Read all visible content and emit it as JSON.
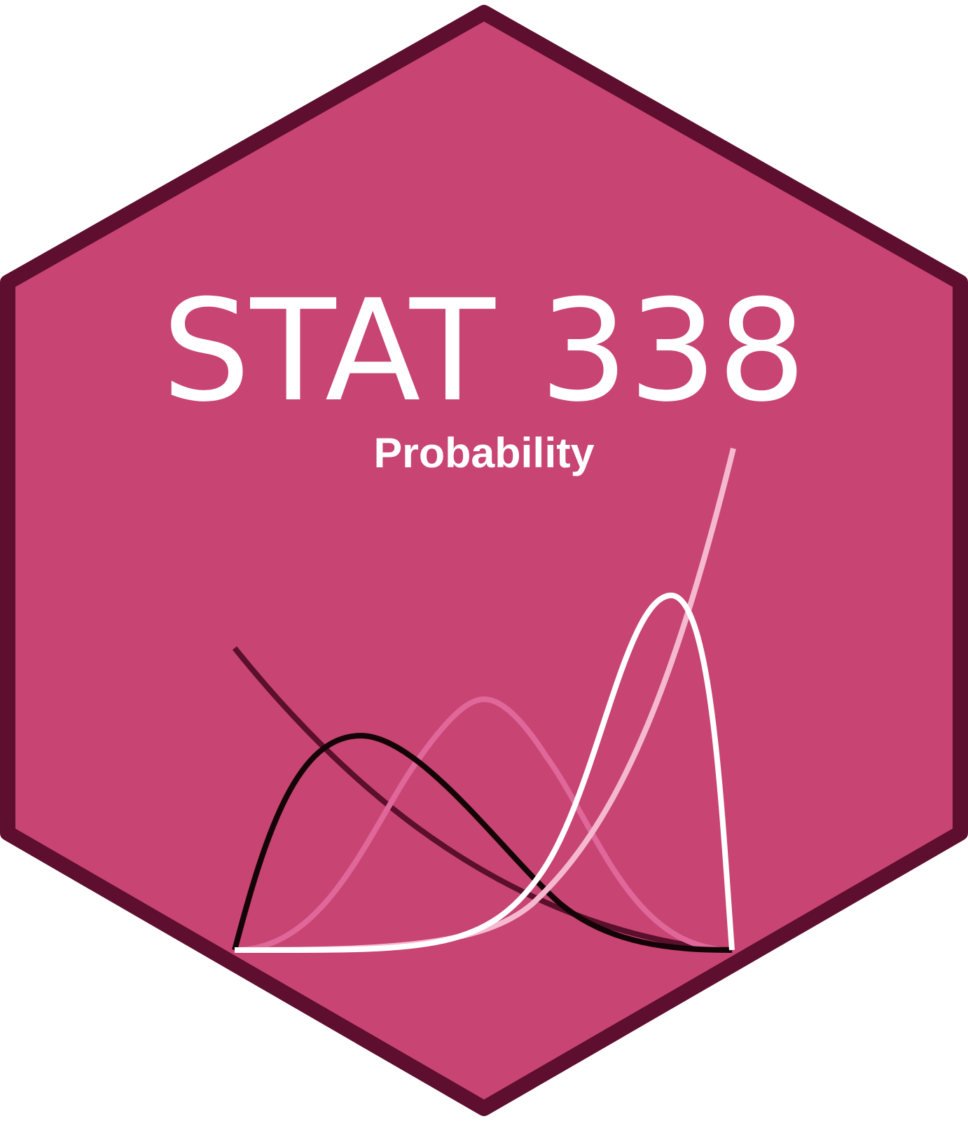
{
  "sticker": {
    "title": "STAT 338",
    "subtitle": "Probability",
    "colors": {
      "fill": "#c84472",
      "border": "#5e0e2e",
      "text": "#ffffff",
      "curve_dark": "#140408",
      "curve_maroon": "#5a0f2c",
      "curve_mid_pink": "#e0679a",
      "curve_light_pink": "#f4b9cf",
      "curve_white": "#ffffff"
    },
    "curves": [
      {
        "name": "right-skewed-density",
        "color_key": "curve_dark"
      },
      {
        "name": "decreasing-curve",
        "color_key": "curve_maroon"
      },
      {
        "name": "symmetric-density",
        "color_key": "curve_mid_pink"
      },
      {
        "name": "increasing-curve",
        "color_key": "curve_light_pink"
      },
      {
        "name": "left-skewed-density",
        "color_key": "curve_white"
      }
    ]
  }
}
